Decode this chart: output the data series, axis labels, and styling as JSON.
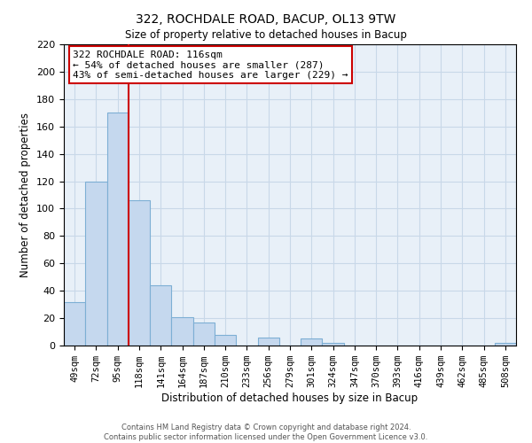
{
  "title": "322, ROCHDALE ROAD, BACUP, OL13 9TW",
  "subtitle": "Size of property relative to detached houses in Bacup",
  "xlabel": "Distribution of detached houses by size in Bacup",
  "ylabel": "Number of detached properties",
  "bar_labels": [
    "49sqm",
    "72sqm",
    "95sqm",
    "118sqm",
    "141sqm",
    "164sqm",
    "187sqm",
    "210sqm",
    "233sqm",
    "256sqm",
    "279sqm",
    "301sqm",
    "324sqm",
    "347sqm",
    "370sqm",
    "393sqm",
    "416sqm",
    "439sqm",
    "462sqm",
    "485sqm",
    "508sqm"
  ],
  "bar_values": [
    32,
    120,
    170,
    106,
    44,
    21,
    17,
    8,
    0,
    6,
    0,
    5,
    2,
    0,
    0,
    0,
    0,
    0,
    0,
    0,
    2
  ],
  "bar_color": "#c5d8ee",
  "bar_edge_color": "#7dafd4",
  "vline_color": "#cc0000",
  "vline_x_index": 2.5,
  "ylim": [
    0,
    220
  ],
  "yticks": [
    0,
    20,
    40,
    60,
    80,
    100,
    120,
    140,
    160,
    180,
    200,
    220
  ],
  "annotation_title": "322 ROCHDALE ROAD: 116sqm",
  "annotation_line1": "← 54% of detached houses are smaller (287)",
  "annotation_line2": "43% of semi-detached houses are larger (229) →",
  "annotation_box_color": "#ffffff",
  "annotation_box_edge": "#cc0000",
  "footer1": "Contains HM Land Registry data © Crown copyright and database right 2024.",
  "footer2": "Contains public sector information licensed under the Open Government Licence v3.0.",
  "bg_color": "#e8f0f8",
  "grid_color": "#c8d8e8"
}
